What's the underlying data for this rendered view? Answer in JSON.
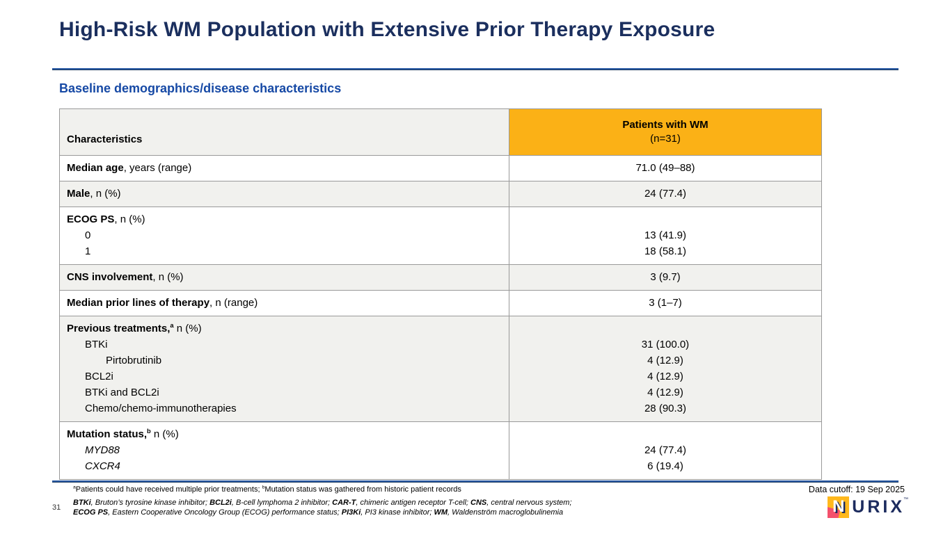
{
  "slide": {
    "title": "High-Risk WM Population with Extensive Prior Therapy Exposure",
    "subtitle": "Baseline demographics/disease characteristics"
  },
  "table": {
    "header": {
      "characteristics": "Characteristics",
      "patients_line1": "Patients with WM",
      "patients_line2": "(n=31)"
    },
    "rows": [
      {
        "shaded": false,
        "lines": [
          {
            "label": [
              {
                "t": "Median age",
                "b": true
              },
              {
                "t": ", years (range)"
              }
            ],
            "value": "71.0 (49–88)",
            "indent": 0
          }
        ]
      },
      {
        "shaded": true,
        "lines": [
          {
            "label": [
              {
                "t": "Male",
                "b": true
              },
              {
                "t": ", n (%)"
              }
            ],
            "value": "24 (77.4)",
            "indent": 0
          }
        ]
      },
      {
        "shaded": false,
        "lines": [
          {
            "label": [
              {
                "t": "ECOG PS",
                "b": true
              },
              {
                "t": ", n (%)"
              }
            ],
            "value": "",
            "indent": 0
          },
          {
            "label": [
              {
                "t": "0"
              }
            ],
            "value": "13 (41.9)",
            "indent": 1
          },
          {
            "label": [
              {
                "t": "1"
              }
            ],
            "value": "18 (58.1)",
            "indent": 1
          }
        ]
      },
      {
        "shaded": true,
        "lines": [
          {
            "label": [
              {
                "t": "CNS involvement",
                "b": true
              },
              {
                "t": ", n (%)"
              }
            ],
            "value": "3 (9.7)",
            "indent": 0
          }
        ]
      },
      {
        "shaded": false,
        "lines": [
          {
            "label": [
              {
                "t": "Median prior lines of therapy",
                "b": true
              },
              {
                "t": ", n (range)"
              }
            ],
            "value": "3 (1–7)",
            "indent": 0
          }
        ]
      },
      {
        "shaded": true,
        "lines": [
          {
            "label": [
              {
                "t": "Previous treatments,",
                "b": true
              },
              {
                "t": "a",
                "b": true,
                "sup": true
              },
              {
                "t": " n (%)"
              }
            ],
            "value": "",
            "indent": 0
          },
          {
            "label": [
              {
                "t": "BTKi"
              }
            ],
            "value": "31 (100.0)",
            "indent": 1
          },
          {
            "label": [
              {
                "t": "Pirtobrutinib"
              }
            ],
            "value": "4 (12.9)",
            "indent": 2
          },
          {
            "label": [
              {
                "t": "BCL2i"
              }
            ],
            "value": "4 (12.9)",
            "indent": 1
          },
          {
            "label": [
              {
                "t": "BTKi and BCL2i"
              }
            ],
            "value": "4 (12.9)",
            "indent": 1
          },
          {
            "label": [
              {
                "t": "Chemo/chemo-immunotherapies"
              }
            ],
            "value": "28 (90.3)",
            "indent": 1
          }
        ]
      },
      {
        "shaded": false,
        "lines": [
          {
            "label": [
              {
                "t": "Mutation status,",
                "b": true
              },
              {
                "t": "b",
                "b": true,
                "sup": true
              },
              {
                "t": " n (%)"
              }
            ],
            "value": "",
            "indent": 0
          },
          {
            "label": [
              {
                "t": "MYD88",
                "i": true
              }
            ],
            "value": "24 (77.4)",
            "indent": 1
          },
          {
            "label": [
              {
                "t": "CXCR4",
                "i": true
              }
            ],
            "value": "6 (19.4)",
            "indent": 1
          }
        ]
      }
    ]
  },
  "footer": {
    "page_number": "31",
    "footnote_segments": [
      {
        "t": "a",
        "sup": true
      },
      {
        "t": "Patients could have received multiple prior treatments; "
      },
      {
        "t": "b",
        "sup": true
      },
      {
        "t": "Mutation status was gathered from historic patient records"
      }
    ],
    "abbreviation_lines": [
      [
        {
          "t": "BTKi",
          "b": true
        },
        {
          "t": ", Bruton’s tyrosine kinase inhibitor; "
        },
        {
          "t": "BCL2i",
          "b": true
        },
        {
          "t": ", B-cell lymphoma 2 inhibitor; "
        },
        {
          "t": "CAR-T",
          "b": true
        },
        {
          "t": ", chimeric antigen receptor T-cell; "
        },
        {
          "t": "CNS",
          "b": true
        },
        {
          "t": ", central nervous system;"
        }
      ],
      [
        {
          "t": "ECOG PS",
          "b": true
        },
        {
          "t": ", Eastern Cooperative Oncology Group (ECOG) performance status; "
        },
        {
          "t": "PI3Ki",
          "b": true
        },
        {
          "t": ", PI3 kinase inhibitor; "
        },
        {
          "t": "WM",
          "b": true
        },
        {
          "t": ", Waldenström macroglobulinemia"
        }
      ]
    ],
    "data_cutoff": "Data cutoff: 19 Sep 2025",
    "logo": {
      "mark_letter": "N",
      "text": "URIX",
      "tm": "™"
    }
  },
  "colors": {
    "title_navy": "#1B2F5E",
    "subtitle_blue": "#1649A5",
    "rule_blue": "#2A5AA4",
    "header_orange": "#FBB116",
    "header_gray": "#F1F1EE",
    "shaded_row_gray": "#F1F1EE",
    "table_border_gray": "#999999",
    "logo_navy": "#1C2B5E",
    "logo_yellow": "#FFB81C",
    "logo_pink": "#F4516C"
  }
}
